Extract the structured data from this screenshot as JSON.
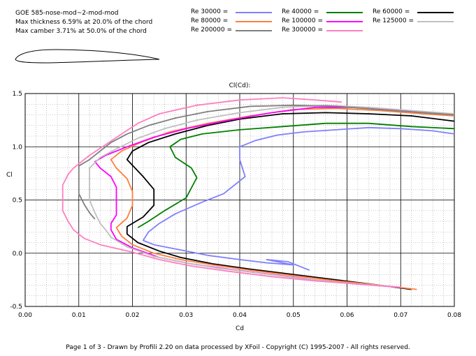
{
  "airfoil": {
    "name": "GOE 585-nose-mod~2-mod-mod",
    "thickness": "Max thickness 6.59% at 20.0% of the chord",
    "camber": "Max camber 3.71% at 50.0% of the chord"
  },
  "footer": "Page 1 of 3  -  Drawn by Profili 2.20 on data processed by  XFoil - Copyright (C) 1995-2007 - All rights reserved.",
  "colors": {
    "re30000": "#7f7fff",
    "re40000": "#007f00",
    "re60000": "#000000",
    "re80000": "#ff7f3f",
    "re100000": "#ff00ff",
    "re125000": "#bfbfbf",
    "re200000": "#7f7f7f",
    "re300000": "#ff7fbf"
  },
  "chart_data": {
    "type": "line",
    "title": "Cl(Cd):",
    "xlabel": "Cd",
    "ylabel": "Cl",
    "xlim": [
      0,
      0.08
    ],
    "ylim": [
      -0.5,
      1.5
    ],
    "grid": true,
    "x_ticks": [
      "0.00",
      "0.01",
      "0.02",
      "0.03",
      "0.04",
      "0.05",
      "0.06",
      "0.07",
      "0.08"
    ],
    "y_ticks": [
      "-0.5",
      "0.0",
      "0.5",
      "1.0",
      "1.5"
    ],
    "legend_position": "top",
    "series": [
      {
        "name": "Re 30000 =",
        "color": "#7f7fff",
        "points": [
          [
            0.053,
            -0.16
          ],
          [
            0.049,
            -0.08
          ],
          [
            0.045,
            -0.06
          ],
          [
            0.05,
            -0.11
          ],
          [
            0.045,
            -0.09
          ],
          [
            0.04,
            -0.06
          ],
          [
            0.034,
            -0.02
          ],
          [
            0.028,
            0.04
          ],
          [
            0.024,
            0.08
          ],
          [
            0.022,
            0.12
          ],
          [
            0.023,
            0.2
          ],
          [
            0.025,
            0.28
          ],
          [
            0.028,
            0.37
          ],
          [
            0.033,
            0.48
          ],
          [
            0.037,
            0.56
          ],
          [
            0.041,
            0.72
          ],
          [
            0.04,
            0.88
          ],
          [
            0.04,
            1.0
          ],
          [
            0.043,
            1.06
          ],
          [
            0.047,
            1.11
          ],
          [
            0.052,
            1.14
          ],
          [
            0.058,
            1.16
          ],
          [
            0.064,
            1.18
          ],
          [
            0.07,
            1.17
          ],
          [
            0.076,
            1.15
          ],
          [
            0.08,
            1.12
          ]
        ]
      },
      {
        "name": "Re 40000 =",
        "color": "#007f00",
        "points": [
          [
            0.021,
            0.24
          ],
          [
            0.023,
            0.3
          ],
          [
            0.026,
            0.4
          ],
          [
            0.03,
            0.52
          ],
          [
            0.032,
            0.71
          ],
          [
            0.031,
            0.8
          ],
          [
            0.028,
            0.9
          ],
          [
            0.027,
            1.0
          ],
          [
            0.029,
            1.07
          ],
          [
            0.033,
            1.12
          ],
          [
            0.04,
            1.16
          ],
          [
            0.048,
            1.19
          ],
          [
            0.056,
            1.22
          ],
          [
            0.064,
            1.22
          ],
          [
            0.072,
            1.19
          ],
          [
            0.08,
            1.17
          ]
        ]
      },
      {
        "name": "Re 60000 =",
        "color": "#000000",
        "points": [
          [
            0.072,
            -0.34
          ],
          [
            0.066,
            -0.3
          ],
          [
            0.058,
            -0.25
          ],
          [
            0.05,
            -0.2
          ],
          [
            0.042,
            -0.15
          ],
          [
            0.035,
            -0.1
          ],
          [
            0.029,
            -0.04
          ],
          [
            0.025,
            0.02
          ],
          [
            0.021,
            0.1
          ],
          [
            0.019,
            0.18
          ],
          [
            0.019,
            0.25
          ],
          [
            0.022,
            0.34
          ],
          [
            0.024,
            0.45
          ],
          [
            0.024,
            0.6
          ],
          [
            0.022,
            0.72
          ],
          [
            0.019,
            0.88
          ],
          [
            0.02,
            0.96
          ],
          [
            0.023,
            1.04
          ],
          [
            0.028,
            1.12
          ],
          [
            0.034,
            1.2
          ],
          [
            0.04,
            1.26
          ],
          [
            0.048,
            1.31
          ],
          [
            0.056,
            1.32
          ],
          [
            0.064,
            1.31
          ],
          [
            0.072,
            1.29
          ],
          [
            0.08,
            1.24
          ]
        ]
      },
      {
        "name": "Re 80000 =",
        "color": "#ff7f3f",
        "points": [
          [
            0.073,
            -0.34
          ],
          [
            0.066,
            -0.3
          ],
          [
            0.058,
            -0.26
          ],
          [
            0.05,
            -0.21
          ],
          [
            0.042,
            -0.16
          ],
          [
            0.035,
            -0.11
          ],
          [
            0.029,
            -0.06
          ],
          [
            0.024,
            0.0
          ],
          [
            0.02,
            0.08
          ],
          [
            0.018,
            0.16
          ],
          [
            0.017,
            0.24
          ],
          [
            0.019,
            0.33
          ],
          [
            0.02,
            0.45
          ],
          [
            0.02,
            0.58
          ],
          [
            0.019,
            0.7
          ],
          [
            0.017,
            0.8
          ],
          [
            0.016,
            0.88
          ],
          [
            0.018,
            0.96
          ],
          [
            0.022,
            1.05
          ],
          [
            0.027,
            1.14
          ],
          [
            0.034,
            1.22
          ],
          [
            0.042,
            1.29
          ],
          [
            0.05,
            1.35
          ],
          [
            0.058,
            1.36
          ],
          [
            0.066,
            1.34
          ],
          [
            0.074,
            1.31
          ],
          [
            0.08,
            1.29
          ]
        ]
      },
      {
        "name": "Re 100000 =",
        "color": "#ff00ff",
        "points": [
          [
            0.07,
            -0.32
          ],
          [
            0.062,
            -0.29
          ],
          [
            0.054,
            -0.25
          ],
          [
            0.046,
            -0.2
          ],
          [
            0.038,
            -0.15
          ],
          [
            0.031,
            -0.1
          ],
          [
            0.025,
            -0.04
          ],
          [
            0.02,
            0.05
          ],
          [
            0.017,
            0.13
          ],
          [
            0.016,
            0.22
          ],
          [
            0.016,
            0.28
          ],
          [
            0.017,
            0.36
          ],
          [
            0.017,
            0.5
          ],
          [
            0.017,
            0.62
          ],
          [
            0.016,
            0.72
          ],
          [
            0.014,
            0.8
          ],
          [
            0.013,
            0.86
          ],
          [
            0.015,
            0.92
          ],
          [
            0.019,
            1.0
          ],
          [
            0.024,
            1.09
          ],
          [
            0.03,
            1.17
          ],
          [
            0.038,
            1.25
          ],
          [
            0.046,
            1.32
          ],
          [
            0.054,
            1.37
          ],
          [
            0.062,
            1.37
          ],
          [
            0.07,
            1.34
          ],
          [
            0.078,
            1.31
          ]
        ]
      },
      {
        "name": "Re 125000 =",
        "color": "#bfbfbf",
        "points": [
          [
            0.068,
            -0.31
          ],
          [
            0.06,
            -0.28
          ],
          [
            0.052,
            -0.24
          ],
          [
            0.044,
            -0.19
          ],
          [
            0.036,
            -0.14
          ],
          [
            0.03,
            -0.09
          ],
          [
            0.024,
            -0.03
          ],
          [
            0.019,
            0.06
          ],
          [
            0.016,
            0.15
          ],
          [
            0.015,
            0.22
          ],
          [
            0.014,
            0.28
          ],
          [
            0.013,
            0.38
          ],
          [
            0.012,
            0.5
          ],
          [
            0.012,
            0.62
          ],
          [
            0.012,
            0.7
          ],
          [
            0.012,
            0.8
          ],
          [
            0.014,
            0.9
          ],
          [
            0.017,
            0.98
          ],
          [
            0.021,
            1.08
          ],
          [
            0.026,
            1.17
          ],
          [
            0.032,
            1.25
          ],
          [
            0.04,
            1.32
          ],
          [
            0.048,
            1.37
          ],
          [
            0.056,
            1.39
          ],
          [
            0.064,
            1.37
          ],
          [
            0.072,
            1.34
          ],
          [
            0.08,
            1.31
          ]
        ]
      },
      {
        "name": "Re 200000 =",
        "color": "#7f7f7f",
        "points": [
          [
            0.013,
            0.32
          ],
          [
            0.012,
            0.38
          ],
          [
            0.011,
            0.46
          ],
          [
            0.01,
            0.56
          ],
          [
            0.01,
            0.66
          ],
          [
            0.01,
            0.75
          ],
          [
            0.01,
            0.82
          ],
          [
            0.012,
            0.88
          ],
          [
            0.014,
            0.96
          ],
          [
            0.016,
            1.04
          ],
          [
            0.019,
            1.12
          ],
          [
            0.023,
            1.2
          ],
          [
            0.028,
            1.27
          ],
          [
            0.034,
            1.33
          ],
          [
            0.042,
            1.38
          ],
          [
            0.05,
            1.39
          ],
          [
            0.058,
            1.38
          ],
          [
            0.066,
            1.35
          ],
          [
            0.074,
            1.32
          ],
          [
            0.08,
            1.3
          ]
        ]
      },
      {
        "name": "Re 300000 =",
        "color": "#ff7fbf",
        "points": [
          [
            0.07,
            -0.32
          ],
          [
            0.062,
            -0.29
          ],
          [
            0.054,
            -0.26
          ],
          [
            0.046,
            -0.22
          ],
          [
            0.038,
            -0.17
          ],
          [
            0.031,
            -0.12
          ],
          [
            0.025,
            -0.06
          ],
          [
            0.02,
            0.01
          ],
          [
            0.014,
            0.08
          ],
          [
            0.011,
            0.14
          ],
          [
            0.009,
            0.22
          ],
          [
            0.008,
            0.3
          ],
          [
            0.007,
            0.4
          ],
          [
            0.007,
            0.52
          ],
          [
            0.007,
            0.64
          ],
          [
            0.008,
            0.74
          ],
          [
            0.009,
            0.8
          ],
          [
            0.01,
            0.84
          ],
          [
            0.012,
            0.92
          ],
          [
            0.015,
            1.02
          ],
          [
            0.018,
            1.12
          ],
          [
            0.021,
            1.22
          ],
          [
            0.025,
            1.31
          ],
          [
            0.032,
            1.39
          ],
          [
            0.04,
            1.44
          ],
          [
            0.048,
            1.46
          ],
          [
            0.054,
            1.44
          ],
          [
            0.059,
            1.42
          ]
        ]
      }
    ]
  }
}
